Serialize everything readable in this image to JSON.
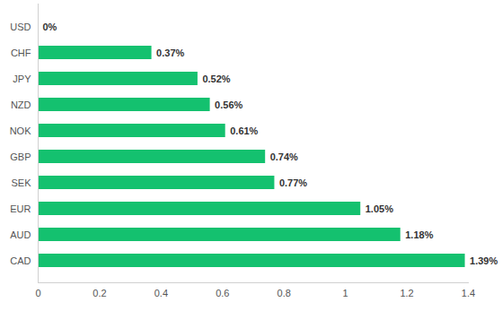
{
  "chart_data": {
    "type": "bar",
    "orientation": "horizontal",
    "categories": [
      "USD",
      "CHF",
      "JPY",
      "NZD",
      "NOK",
      "GBP",
      "SEK",
      "EUR",
      "AUD",
      "CAD"
    ],
    "values": [
      0,
      0.37,
      0.52,
      0.56,
      0.61,
      0.74,
      0.77,
      1.05,
      1.18,
      1.39
    ],
    "value_labels": [
      "0%",
      "0.37%",
      "0.52%",
      "0.56%",
      "0.61%",
      "0.74%",
      "0.77%",
      "1.05%",
      "1.18%",
      "1.39%"
    ],
    "data_labels": true,
    "color": "#14c16f",
    "xlim": [
      0,
      1.4
    ],
    "xticks": [
      0,
      0.2,
      0.4,
      0.6,
      0.8,
      1,
      1.2,
      1.4
    ],
    "grid": false
  }
}
